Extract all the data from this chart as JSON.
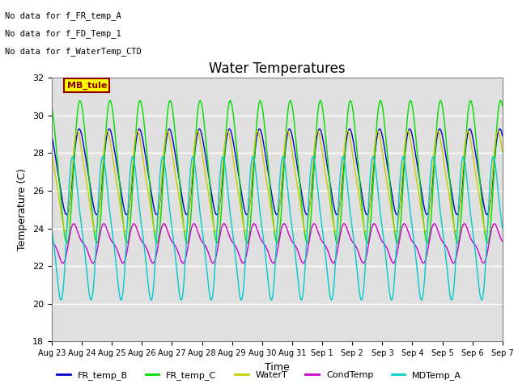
{
  "title": "Water Temperatures",
  "xlabel": "Time",
  "ylabel": "Temperature (C)",
  "ylim": [
    18,
    32
  ],
  "xlim_days": [
    0,
    15
  ],
  "tick_labels": [
    "Aug 23",
    "Aug 24",
    "Aug 25",
    "Aug 26",
    "Aug 27",
    "Aug 28",
    "Aug 29",
    "Aug 30",
    "Aug 31",
    "Sep 1",
    "Sep 2",
    "Sep 3",
    "Sep 4",
    "Sep 5",
    "Sep 6",
    "Sep 7"
  ],
  "annotations": [
    "No data for f_FR_temp_A",
    "No data for f_FD_Temp_1",
    "No data for f_WaterTemp_CTD"
  ],
  "mb_tule_label": "MB_tule",
  "colors": {
    "FR_temp_B": "#0000cc",
    "FR_temp_C": "#00dd00",
    "WaterT": "#cccc00",
    "CondTemp": "#cc00cc",
    "MDTemp_A": "#00cccc"
  },
  "background_color": "#e0e0e0",
  "figsize": [
    6.4,
    4.8
  ],
  "dpi": 100
}
